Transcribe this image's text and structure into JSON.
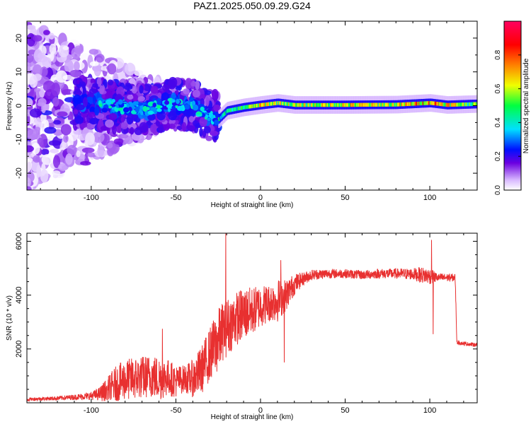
{
  "figure_title": "PAZ1.2025.050.09.29.G24",
  "chart_data": [
    {
      "type": "heatmap",
      "title": "PAZ1.2025.050.09.29.G24",
      "xlabel": "Height of straight line (km)",
      "ylabel": "Frequency (Hz)",
      "xlim": [
        -138,
        128
      ],
      "ylim": [
        -25,
        25
      ],
      "x_ticks": [
        -100,
        -50,
        0,
        50,
        100
      ],
      "y_ticks": [
        -20,
        -10,
        0,
        10,
        20
      ],
      "grid": false,
      "colorbar": {
        "label": "Normalized spectral amplitude",
        "range": [
          0,
          1
        ],
        "ticks": [
          "0.0",
          "0.2",
          "0.4",
          "0.6",
          "0.8"
        ],
        "colormap": [
          "#ffffff",
          "#d8b8ff",
          "#6b00e0",
          "#0010ff",
          "#00e0ff",
          "#00ff40",
          "#f0ff00",
          "#ff8000",
          "#ff0000",
          "#ff0060"
        ]
      },
      "ridge": {
        "description_points": [
          {
            "x": -90,
            "f": 0.0,
            "amp": 0.25
          },
          {
            "x": -70,
            "f": -1.0,
            "amp": 0.35
          },
          {
            "x": -50,
            "f": 0.5,
            "amp": 0.3
          },
          {
            "x": -40,
            "f": 0.0,
            "amp": 0.4
          },
          {
            "x": -30,
            "f": -3.0,
            "amp": 0.45
          },
          {
            "x": -25,
            "f": -4.0,
            "amp": 0.5
          },
          {
            "x": -20,
            "f": -1.5,
            "amp": 0.5
          },
          {
            "x": -10,
            "f": -0.5,
            "amp": 0.6
          },
          {
            "x": 0,
            "f": 0.2,
            "amp": 0.8
          },
          {
            "x": 10,
            "f": 0.8,
            "amp": 0.75
          },
          {
            "x": 20,
            "f": 0.2,
            "amp": 0.7
          },
          {
            "x": 50,
            "f": 0.2,
            "amp": 0.8
          },
          {
            "x": 80,
            "f": 0.3,
            "amp": 0.75
          },
          {
            "x": 100,
            "f": 0.8,
            "amp": 0.95
          },
          {
            "x": 110,
            "f": 0.2,
            "amp": 0.85
          },
          {
            "x": 128,
            "f": 0.5,
            "amp": 0.6
          }
        ]
      }
    },
    {
      "type": "line",
      "xlabel": "Height of straight line (km)",
      "ylabel": "SNR (10 * v/v)",
      "xlim": [
        -138,
        128
      ],
      "ylim": [
        0,
        6300
      ],
      "x_ticks": [
        -100,
        -50,
        0,
        50,
        100
      ],
      "y_ticks": [
        2000,
        4000,
        6000
      ],
      "grid": false,
      "color": "#e83030",
      "series": [
        {
          "x": [
            -138,
            -120,
            -110,
            -100,
            -95,
            -90,
            -85,
            -80,
            -75,
            -70,
            -65,
            -60,
            -55,
            -50,
            -45,
            -40,
            -35,
            -30,
            -25,
            -22,
            -20,
            -15,
            -10,
            -5,
            0,
            5,
            10,
            15,
            20,
            25,
            30,
            40,
            50,
            60,
            70,
            80,
            90,
            95,
            100,
            105,
            110,
            113,
            115,
            116,
            120,
            128
          ],
          "y": [
            130,
            170,
            210,
            260,
            330,
            500,
            700,
            850,
            900,
            950,
            1000,
            900,
            950,
            800,
            900,
            900,
            1200,
            1800,
            2300,
            2700,
            2800,
            3100,
            3300,
            3400,
            3600,
            3700,
            3800,
            4000,
            4400,
            4600,
            4750,
            4800,
            4800,
            4750,
            4800,
            4800,
            4780,
            4750,
            4700,
            4650,
            4650,
            4650,
            4650,
            2250,
            2200,
            2150
          ],
          "noise": [
            60,
            80,
            100,
            150,
            250,
            500,
            700,
            750,
            800,
            800,
            800,
            850,
            700,
            600,
            500,
            700,
            900,
            1000,
            1200,
            1100,
            1100,
            1000,
            1000,
            900,
            800,
            700,
            800,
            600,
            400,
            250,
            200,
            180,
            170,
            170,
            180,
            190,
            220,
            300,
            300,
            150,
            150,
            150,
            150,
            80,
            70,
            70
          ]
        }
      ],
      "annotations": [
        {
          "x": -20.5,
          "y": 6300,
          "type": "spike"
        },
        {
          "x": 12,
          "y": 5300,
          "type": "spike"
        },
        {
          "x": 14,
          "y": 1500,
          "type": "dip"
        },
        {
          "x": 101,
          "y": 6050,
          "type": "spike"
        },
        {
          "x": 102,
          "y": 2550,
          "type": "dip"
        },
        {
          "x": -58,
          "y": 2750,
          "type": "spike"
        }
      ]
    }
  ]
}
